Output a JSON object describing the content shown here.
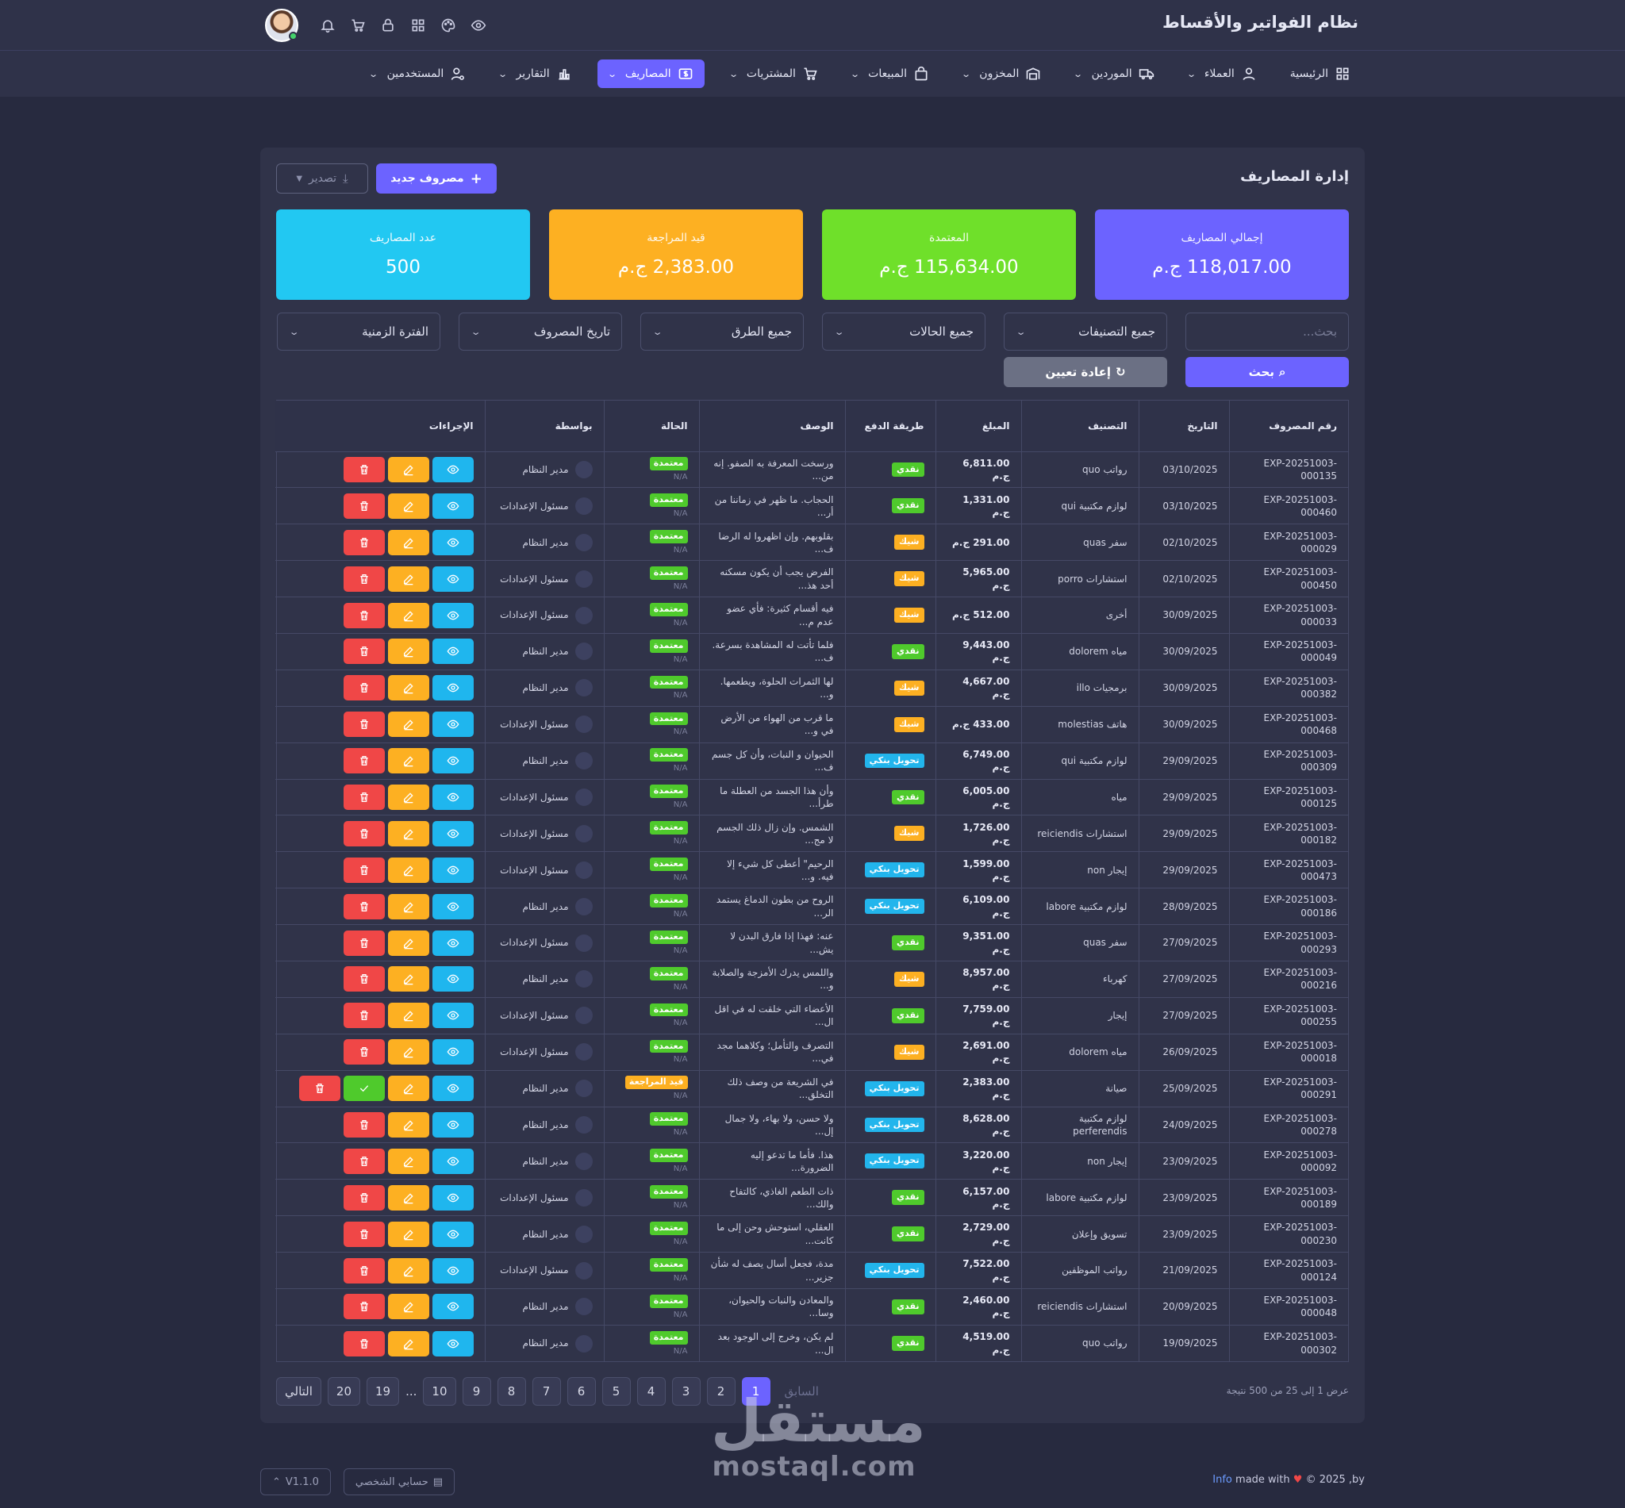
{
  "app": {
    "title": "نظام الفواتير والأقساط"
  },
  "nav": [
    {
      "label": "الرئيسية",
      "icon": "dashboard-icon",
      "active": false,
      "dropdown": false
    },
    {
      "label": "العملاء",
      "icon": "user-icon",
      "active": false,
      "dropdown": true
    },
    {
      "label": "الموردين",
      "icon": "truck-icon",
      "active": false,
      "dropdown": true
    },
    {
      "label": "المخزون",
      "icon": "warehouse-icon",
      "active": false,
      "dropdown": true
    },
    {
      "label": "المبيعات",
      "icon": "bag-icon",
      "active": false,
      "dropdown": true
    },
    {
      "label": "المشتريات",
      "icon": "cart-icon",
      "active": false,
      "dropdown": true
    },
    {
      "label": "المصاريف",
      "icon": "money-icon",
      "active": true,
      "dropdown": true
    },
    {
      "label": "التقارير",
      "icon": "chart-icon",
      "active": false,
      "dropdown": true
    },
    {
      "label": "المستخدمين",
      "icon": "users-gear-icon",
      "active": false,
      "dropdown": true
    }
  ],
  "page": {
    "title": "إدارة المصاريف",
    "new_button": "مصروف جديد",
    "export_button": "تصدير"
  },
  "stats": [
    {
      "label": "إجمالي المصاريف",
      "value": "118,017.00 ج.م",
      "color": "#6c63ff"
    },
    {
      "label": "المعتمدة",
      "value": "115,634.00 ج.م",
      "color": "#6fe02a"
    },
    {
      "label": "قيد المراجعة",
      "value": "2,383.00 ج.م",
      "color": "#fdb022"
    },
    {
      "label": "عدد المصاريف",
      "value": "500",
      "color": "#22c8f2"
    }
  ],
  "filters": {
    "search_placeholder": "بحث...",
    "category": "جميع التصنيفات",
    "status": "جميع الحالات",
    "method": "جميع الطرق",
    "date": "تاريخ المصروف",
    "period": "الفترة الزمنية",
    "search_button": "بحث",
    "reset_button": "إعادة تعيين"
  },
  "table": {
    "headers": [
      "رقم المصروف",
      "التاريخ",
      "التصنيف",
      "المبلغ",
      "طريقة الدفع",
      "الوصف",
      "الحالة",
      "بواسطة",
      "الإجراءات"
    ],
    "na": "N/A",
    "rows": [
      {
        "id": "EXP-20251003-000135",
        "date": "03/10/2025",
        "cat": "رواتب quo",
        "amount": "6,811.00 ج.م",
        "method": "نقدي",
        "desc": "ورسخت المعرفة به الصفو. إنه من...",
        "status": "معتمدة",
        "by": "مدير النظام"
      },
      {
        "id": "EXP-20251003-000460",
        "date": "03/10/2025",
        "cat": "لوازم مكتبية qui",
        "amount": "1,331.00 ج.م",
        "method": "نقدي",
        "desc": "الحجاب. ما ظهر في زماننا من أر...",
        "status": "معتمدة",
        "by": "مسئول الإعدادات"
      },
      {
        "id": "EXP-20251003-000029",
        "date": "02/10/2025",
        "cat": "سفر quas",
        "amount": "291.00 ج.م",
        "method": "شيك",
        "desc": "بقلوبهم. وإن اظهروا له الرضا ف...",
        "status": "معتمدة",
        "by": "مدير النظام"
      },
      {
        "id": "EXP-20251003-000450",
        "date": "02/10/2025",
        "cat": "استشارات porro",
        "amount": "5,965.00 ج.م",
        "method": "شيك",
        "desc": "الفرض يجب أن يكون مسكنه أحد هذ...",
        "status": "معتمدة",
        "by": "مسئول الإعدادات"
      },
      {
        "id": "EXP-20251003-000033",
        "date": "30/09/2025",
        "cat": "أخرى",
        "amount": "512.00 ج.م",
        "method": "شيك",
        "desc": "فيه أقسام كثيرة: فأي عضو عدم م...",
        "status": "معتمدة",
        "by": "مسئول الإعدادات"
      },
      {
        "id": "EXP-20251003-000049",
        "date": "30/09/2025",
        "cat": "مياه dolorem",
        "amount": "9,443.00 ج.م",
        "method": "نقدي",
        "desc": "فلما تأتت له المشاهدة بسرعة. ف...",
        "status": "معتمدة",
        "by": "مدير النظام"
      },
      {
        "id": "EXP-20251003-000382",
        "date": "30/09/2025",
        "cat": "برمجيات illo",
        "amount": "4,667.00 ج.م",
        "method": "شيك",
        "desc": "لها الثمرات الحلوة، ويطعمها. و...",
        "status": "معتمدة",
        "by": "مدير النظام"
      },
      {
        "id": "EXP-20251003-000468",
        "date": "30/09/2025",
        "cat": "هاتف molestias",
        "amount": "433.00 ج.م",
        "method": "شيك",
        "desc": "ما قرب من الهواء من الأرض في و...",
        "status": "معتمدة",
        "by": "مسئول الإعدادات"
      },
      {
        "id": "EXP-20251003-000309",
        "date": "29/09/2025",
        "cat": "لوازم مكتبية qui",
        "amount": "6,749.00 ج.م",
        "method": "تحويل بنكي",
        "desc": "الحيوان و النبات، وأن كل جسم ف...",
        "status": "معتمدة",
        "by": "مدير النظام"
      },
      {
        "id": "EXP-20251003-000125",
        "date": "29/09/2025",
        "cat": "مياه",
        "amount": "6,005.00 ج.م",
        "method": "نقدي",
        "desc": "وأن هذا الجسد من العطلة ما طرأ...",
        "status": "معتمدة",
        "by": "مسئول الإعدادات"
      },
      {
        "id": "EXP-20251003-000182",
        "date": "29/09/2025",
        "cat": "استشارات reiciendis",
        "amount": "1,726.00 ج.م",
        "method": "شيك",
        "desc": "الشمس. وإن زال ذلك الجسم لا مج...",
        "status": "معتمدة",
        "by": "مسئول الإعدادات"
      },
      {
        "id": "EXP-20251003-000473",
        "date": "29/09/2025",
        "cat": "إيجار non",
        "amount": "1,599.00 ج.م",
        "method": "تحويل بنكي",
        "desc": "الرحيم\" أعطى كل شيء إلا فيه. و...",
        "status": "معتمدة",
        "by": "مسئول الإعدادات"
      },
      {
        "id": "EXP-20251003-000186",
        "date": "28/09/2025",
        "cat": "لوازم مكتبية labore",
        "amount": "6,109.00 ج.م",
        "method": "تحويل بنكي",
        "desc": "الروح من بطون الدماغ يستمد الر...",
        "status": "معتمدة",
        "by": "مدير النظام"
      },
      {
        "id": "EXP-20251003-000293",
        "date": "27/09/2025",
        "cat": "سفر quas",
        "amount": "9,351.00 ج.م",
        "method": "نقدي",
        "desc": "عنه: فهذا إذا فارق البدن لا يش...",
        "status": "معتمدة",
        "by": "مسئول الإعدادات"
      },
      {
        "id": "EXP-20251003-000216",
        "date": "27/09/2025",
        "cat": "كهرباء",
        "amount": "8,957.00 ج.م",
        "method": "شيك",
        "desc": "واللمس يدرك الأمزجة والصلابة و...",
        "status": "معتمدة",
        "by": "مدير النظام"
      },
      {
        "id": "EXP-20251003-000255",
        "date": "27/09/2025",
        "cat": "إيجار",
        "amount": "7,759.00 ج.م",
        "method": "نقدي",
        "desc": "الأعضاء التي خلقت له في اقل ال...",
        "status": "معتمدة",
        "by": "مسئول الإعدادات"
      },
      {
        "id": "EXP-20251003-000018",
        "date": "26/09/2025",
        "cat": "مياه dolorem",
        "amount": "2,691.00 ج.م",
        "method": "شيك",
        "desc": "التصرف والتأمل؛ وكلاهما مجد في...",
        "status": "معتمدة",
        "by": "مسئول الإعدادات"
      },
      {
        "id": "EXP-20251003-000291",
        "date": "25/09/2025",
        "cat": "صيانة",
        "amount": "2,383.00 ج.م",
        "method": "تحويل بنكي",
        "desc": "في الشريعة من وصف ذلك التخلق...",
        "status": "قيد المراجعة",
        "by": "مدير النظام"
      },
      {
        "id": "EXP-20251003-000278",
        "date": "24/09/2025",
        "cat": "لوازم مكتبية perferendis",
        "amount": "8,628.00 ج.م",
        "method": "تحويل بنكي",
        "desc": "ولا حسن، ولا بهاء، ولا جمال إل...",
        "status": "معتمدة",
        "by": "مدير النظام"
      },
      {
        "id": "EXP-20251003-000092",
        "date": "23/09/2025",
        "cat": "إيجار non",
        "amount": "3,220.00 ج.م",
        "method": "تحويل بنكي",
        "desc": "هذا. فأما ما تدعو إليه الضرورة...",
        "status": "معتمدة",
        "by": "مدير النظام"
      },
      {
        "id": "EXP-20251003-000189",
        "date": "23/09/2025",
        "cat": "لوازم مكتبية labore",
        "amount": "6,157.00 ج.م",
        "method": "نقدي",
        "desc": "ذات الطعم الغاذي، كالتفاح والك...",
        "status": "معتمدة",
        "by": "مسئول الإعدادات"
      },
      {
        "id": "EXP-20251003-000230",
        "date": "23/09/2025",
        "cat": "تسويق وإعلان",
        "amount": "2,729.00 ج.م",
        "method": "نقدي",
        "desc": "العقلي، استوحش وحن إلى ما كانت...",
        "status": "معتمدة",
        "by": "مدير النظام"
      },
      {
        "id": "EXP-20251003-000124",
        "date": "21/09/2025",
        "cat": "رواتب الموظفين",
        "amount": "7,522.00 ج.م",
        "method": "تحويل بنكي",
        "desc": "مدة، فجعل أسال يصف له شأن جزير...",
        "status": "معتمدة",
        "by": "مسئول الإعدادات"
      },
      {
        "id": "EXP-20251003-000048",
        "date": "20/09/2025",
        "cat": "استشارات reiciendis",
        "amount": "2,460.00 ج.م",
        "method": "نقدي",
        "desc": "والمعادن والنبات والحيوان، وسا...",
        "status": "معتمدة",
        "by": "مدير النظام"
      },
      {
        "id": "EXP-20251003-000302",
        "date": "19/09/2025",
        "cat": "رواتب quo",
        "amount": "4,519.00 ج.م",
        "method": "نقدي",
        "desc": "لم يكن، وخرج إلى الوجود بعد ال...",
        "status": "معتمدة",
        "by": "مدير النظام"
      }
    ]
  },
  "colors": {
    "cash": "#4fca2c",
    "check": "#fdb022",
    "bank": "#22b5ec",
    "approved": "#4fca2c",
    "pending": "#fdb022"
  },
  "pagination": {
    "showing": "عرض 1 إلى 25 من 500 نتيجة",
    "prev": "السابق",
    "next": "التالي",
    "pages": [
      "1",
      "2",
      "3",
      "4",
      "5",
      "6",
      "7",
      "8",
      "9",
      "10",
      "...",
      "19",
      "20"
    ],
    "active": "1"
  },
  "footer": {
    "copyright": "© 2025 ,by",
    "made_with": "made with",
    "info": "Info",
    "version": "V1.1.0",
    "account_button": "حسابي الشخصي"
  },
  "watermark": {
    "arabic": "مستقل",
    "latin": "mostaql.com"
  }
}
